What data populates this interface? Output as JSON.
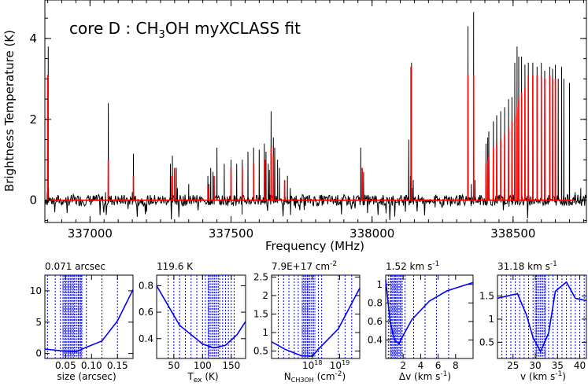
{
  "chart_data": [
    {
      "type": "line",
      "title": "core D : CH",
      "title_sub": "3",
      "title_rest": "OH myXCLASS fit",
      "xlabel": "Frequency (MHz)",
      "ylabel": "Brightness Temperature (K)",
      "xlim": [
        336840,
        338760
      ],
      "ylim": [
        -0.55,
        4.95
      ],
      "xticks": [
        337000,
        337500,
        338000,
        338500
      ],
      "yticks": [
        0,
        2,
        4
      ],
      "series": [
        {
          "color": "#000000",
          "x": [
            336848,
            336852,
            336853,
            337055,
            337065,
            337068,
            337150,
            337154,
            337157,
            337285,
            337292,
            337300,
            337306,
            337310,
            337350,
            337418,
            337422,
            337428,
            337436,
            337440,
            337450,
            337476,
            337500,
            337520,
            337540,
            337560,
            337580,
            337600,
            337618,
            337624,
            337632,
            337636,
            337642,
            337650,
            337655,
            337665,
            337672,
            337690,
            337700,
            337710,
            337960,
            337970,
            338130,
            338136,
            338140,
            338142,
            338146,
            338340,
            338352,
            338360,
            338365,
            338404,
            338410,
            338414,
            338430,
            338442,
            338456,
            338470,
            338484,
            338496,
            338506,
            338514,
            338520,
            338530,
            338542,
            338554,
            338570,
            338585,
            338600,
            338612,
            338630,
            338640,
            338650,
            338660,
            338672,
            338680,
            338700,
            338720,
            338740
          ],
          "y": [
            0.2,
            3.8,
            0.3,
            0.2,
            2.4,
            0.1,
            0.2,
            1.15,
            0.1,
            0.9,
            1.1,
            0.6,
            0.8,
            0.3,
            0.4,
            0.6,
            0.4,
            0.8,
            0.7,
            0.5,
            1.3,
            0.9,
            1.0,
            0.9,
            1.0,
            1.2,
            1.3,
            1.25,
            1.4,
            1.2,
            0.9,
            0.75,
            2.2,
            1.55,
            1.3,
            1.0,
            0.8,
            0.4,
            0.6,
            0.3,
            1.3,
            0.7,
            1.5,
            0.6,
            3.4,
            0.3,
            0.5,
            4.3,
            0.4,
            4.65,
            0.5,
            1.4,
            1.55,
            1.7,
            1.95,
            2.1,
            2.2,
            2.3,
            2.5,
            2.55,
            3.4,
            3.8,
            3.55,
            3.55,
            3.35,
            3.4,
            3.4,
            3.3,
            3.4,
            3.2,
            3.3,
            3.25,
            3.35,
            3.0,
            3.3,
            3.0,
            2.9,
            0.2,
            0.3
          ]
        },
        {
          "color": "#ff0000",
          "x": [
            336850,
            337065,
            337154,
            337290,
            337300,
            337420,
            337440,
            337500,
            337540,
            337580,
            337620,
            337642,
            337650,
            337690,
            337965,
            338138,
            338340,
            338360,
            338404,
            338410,
            338414,
            338430,
            338442,
            338456,
            338470,
            338484,
            338496,
            338506,
            338514,
            338520,
            338530,
            338542,
            338554,
            338570,
            338585,
            338600,
            338612,
            338630,
            338640,
            338650
          ],
          "y": [
            3.1,
            1.0,
            0.6,
            0.6,
            0.8,
            0.35,
            0.6,
            0.8,
            0.8,
            0.9,
            1.0,
            1.3,
            1.1,
            0.5,
            0.8,
            3.3,
            3.1,
            3.1,
            0.9,
            1.0,
            1.1,
            1.3,
            1.4,
            1.5,
            1.65,
            1.8,
            1.95,
            2.1,
            2.3,
            2.5,
            2.65,
            2.8,
            3.1,
            3.1,
            3.1,
            3.05,
            3.0,
            3.1,
            3.0,
            3.0
          ]
        }
      ]
    },
    {
      "type": "line",
      "title": "0.071 arcsec",
      "xlabel": "size (arcsec)",
      "xlim": [
        0.01,
        0.18
      ],
      "ylim": [
        -0.8,
        12.5
      ],
      "xticks": [
        "0.05",
        "0.10",
        "0.15"
      ],
      "yticks": [
        "0",
        "5",
        "10"
      ],
      "x": [
        0.01,
        0.05,
        0.071,
        0.09,
        0.12,
        0.15,
        0.18
      ],
      "y": [
        0.7,
        0.35,
        0.3,
        1.0,
        2.0,
        5.2,
        10.2
      ],
      "best": 0.071,
      "dotted": [
        0.015,
        0.03,
        0.04,
        0.045,
        0.05,
        0.055,
        0.06,
        0.065,
        0.075,
        0.08,
        0.09,
        0.12,
        0.15
      ],
      "dense": [
        0.045,
        0.082
      ]
    },
    {
      "type": "line",
      "title": "119.6 K",
      "xlabel": "T",
      "xlabel_sub": "ex",
      "xlabel_rest": " (K)",
      "xlim": [
        20,
        175
      ],
      "ylim": [
        0.25,
        0.88
      ],
      "xticks": [
        "50",
        "100",
        "150"
      ],
      "yticks": [
        "0.4",
        "0.6",
        "0.8"
      ],
      "x": [
        20,
        60,
        100,
        119.6,
        140,
        160,
        175
      ],
      "y": [
        0.8,
        0.5,
        0.36,
        0.33,
        0.35,
        0.43,
        0.53
      ],
      "best": 119.6,
      "dotted": [
        40,
        50,
        60,
        70,
        80,
        90,
        100,
        105,
        110,
        130,
        135,
        140,
        145,
        150,
        155
      ],
      "dense": [
        110,
        128
      ]
    },
    {
      "type": "line",
      "title": "7.9E+17 cm",
      "title_sup": "-2",
      "xlabel": "N",
      "xlabel_sub": "CH3OH",
      "xlabel_rest": " (cm",
      "xlabel_sup": "-2",
      "xlabel_end": ")",
      "xlim": [
        0.1,
        1.42
      ],
      "ylim": [
        0.3,
        2.55
      ],
      "xticks": [
        "10",
        "10"
      ],
      "xticks_sup": [
        "18",
        "19"
      ],
      "yticks": [
        "0.5",
        "1",
        "1.5",
        "2",
        "2.5"
      ],
      "x": [
        0.1,
        0.3,
        0.55,
        0.71,
        0.8,
        1.1,
        1.42
      ],
      "y": [
        0.75,
        0.55,
        0.37,
        0.36,
        0.55,
        1.1,
        2.2
      ],
      "best": 0.71,
      "dotted": [
        0.2,
        0.28,
        0.36,
        0.44,
        0.5,
        0.56,
        0.6,
        0.64,
        0.8,
        0.85,
        1.1,
        1.2,
        1.3
      ],
      "dense": [
        0.56,
        0.76
      ]
    },
    {
      "type": "line",
      "title": "1.52 km s",
      "title_sup": "-1",
      "xlabel": "Δv (km s",
      "xlabel_sup": "-1",
      "xlabel_end": ")",
      "xlim": [
        0,
        10
      ],
      "ylim": [
        0.2,
        1.1
      ],
      "xticks": [
        "2",
        "4",
        "6",
        "8"
      ],
      "yticks": [
        "0.4",
        "0.6",
        "0.8",
        "1"
      ],
      "x": [
        0,
        0.5,
        1.0,
        1.52,
        2.0,
        3.0,
        5.0,
        7.0,
        10.0
      ],
      "y": [
        1.05,
        0.6,
        0.4,
        0.36,
        0.45,
        0.62,
        0.82,
        0.93,
        1.02
      ],
      "best": 1.52,
      "dotted": [
        0.3,
        0.5,
        0.7,
        0.9,
        1.1,
        1.3,
        1.7,
        2.2,
        3.2,
        4.5,
        5.8,
        7.2
      ],
      "dense": [
        0.6,
        2.0
      ]
    },
    {
      "type": "line",
      "title": "31.18 km s",
      "title_sup": "-1",
      "xlabel": "v (km s",
      "xlabel_sup": "-1",
      "xlabel_end": ")",
      "xlim": [
        21.5,
        41.5
      ],
      "ylim": [
        0.15,
        1.95
      ],
      "xticks": [
        "25",
        "30",
        "35",
        "40"
      ],
      "yticks": [
        "0.5",
        "1",
        "1.5"
      ],
      "x": [
        21.5,
        26,
        28,
        29.5,
        31.18,
        33,
        34.5,
        37,
        39,
        41.5
      ],
      "y": [
        1.45,
        1.55,
        1.1,
        0.6,
        0.3,
        0.7,
        1.6,
        1.8,
        1.45,
        1.4
      ],
      "best": 31.18,
      "dotted": [
        22.5,
        23.5,
        24.5,
        25.5,
        26.5,
        27.5,
        28.5,
        29.5,
        30.2,
        32.2,
        33,
        34,
        35,
        36,
        37,
        38,
        39,
        40,
        41
      ],
      "dense": [
        30,
        32.5
      ]
    }
  ]
}
